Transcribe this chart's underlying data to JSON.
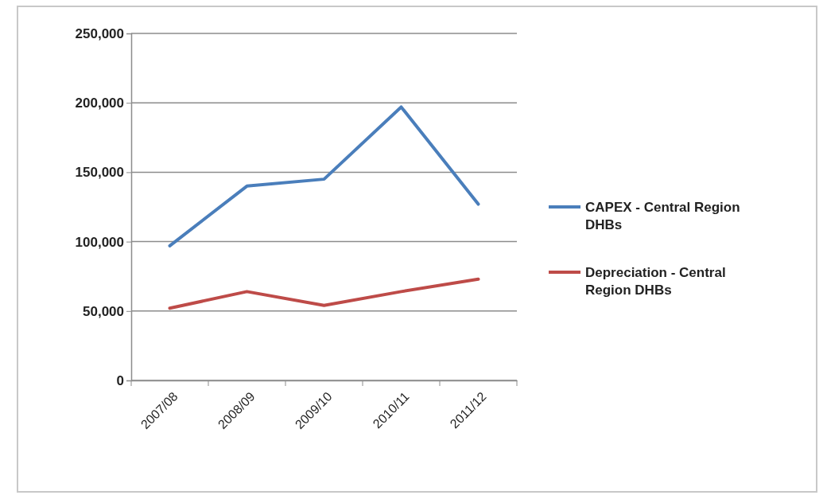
{
  "chart_data": {
    "type": "line",
    "categories": [
      "2007/08",
      "2008/09",
      "2009/10",
      "2010/11",
      "2011/12"
    ],
    "series": [
      {
        "name": "CAPEX - Central Region DHBs",
        "color": "#4a7ebb",
        "values": [
          97000,
          140000,
          145000,
          197000,
          127000
        ]
      },
      {
        "name": "Depreciation - Central Region DHBs",
        "color": "#be4b48",
        "values": [
          52000,
          64000,
          54000,
          64000,
          73000
        ]
      }
    ],
    "ylim": [
      0,
      250000
    ],
    "yticks": [
      {
        "value": 0,
        "label": "0"
      },
      {
        "value": 50000,
        "label": "50,000"
      },
      {
        "value": 100000,
        "label": "100,000"
      },
      {
        "value": 150000,
        "label": "150,000"
      },
      {
        "value": 200000,
        "label": "200,000"
      },
      {
        "value": 250000,
        "label": "250,000"
      }
    ],
    "grid": "y",
    "legend": "right",
    "marker": "none",
    "line_style": "solid"
  }
}
